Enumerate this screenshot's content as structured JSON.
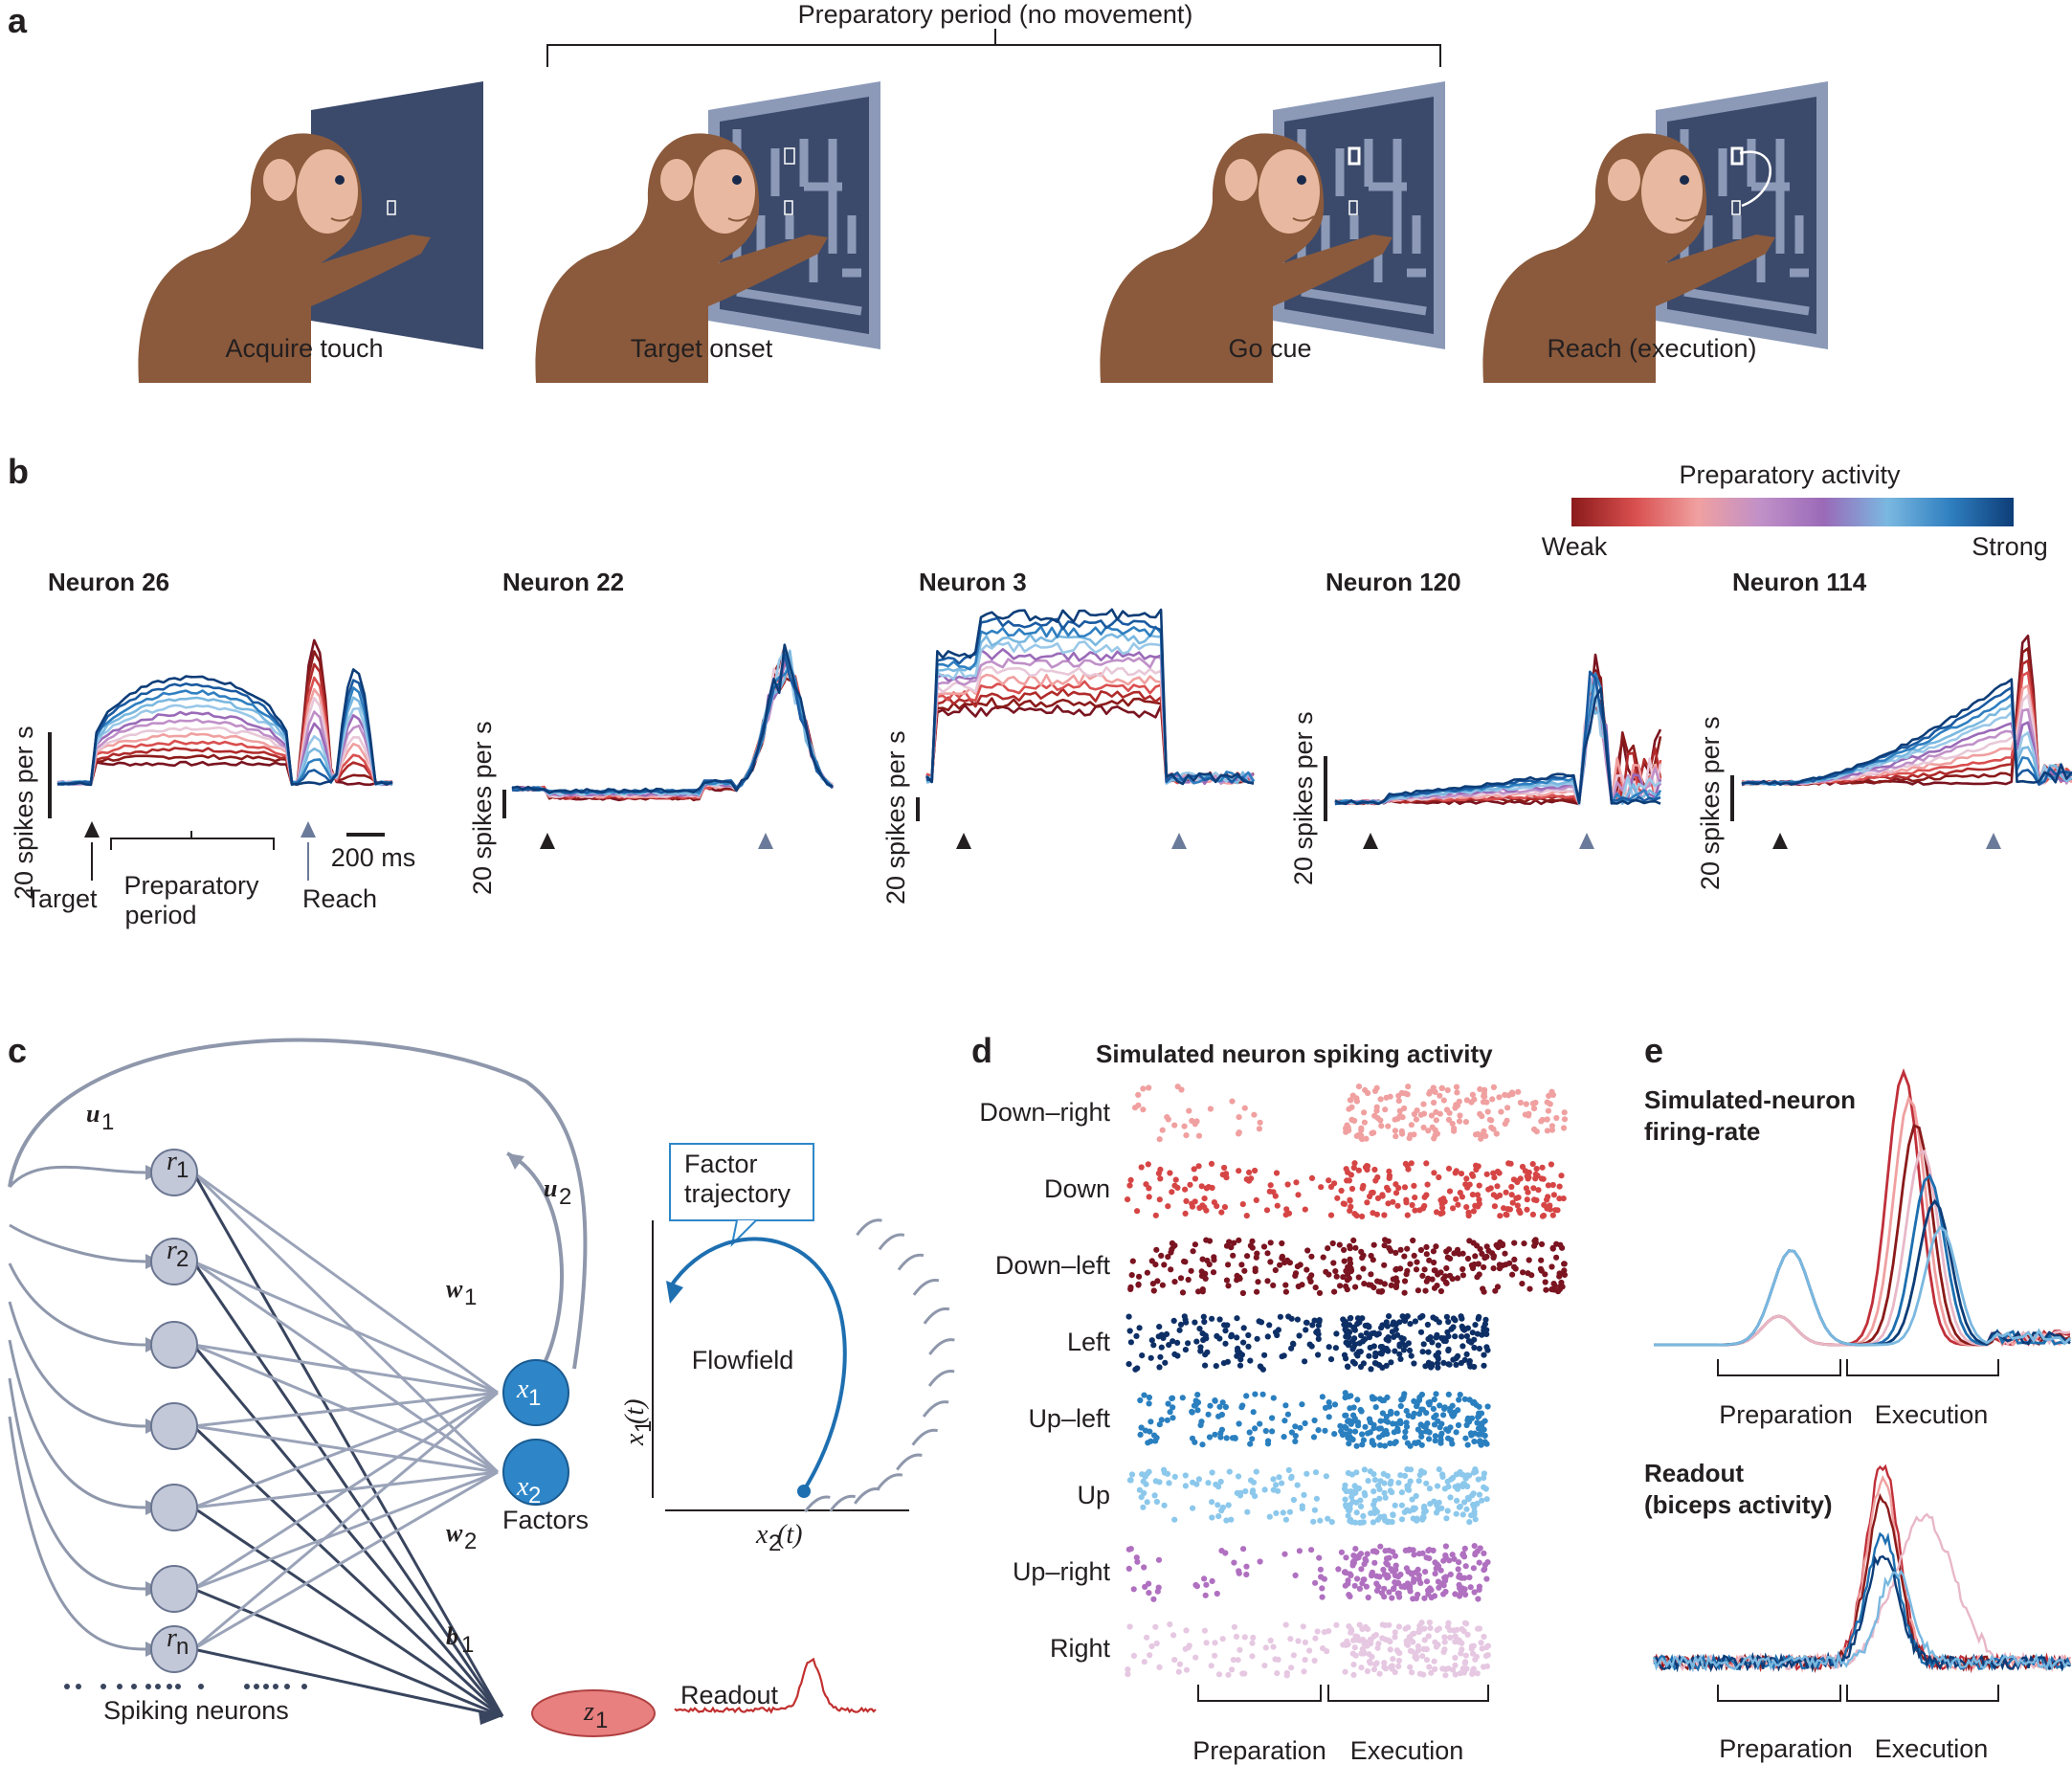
{
  "panel_a": {
    "label": "a",
    "bracket_title": "Preparatory period (no movement)",
    "captions": [
      "Acquire touch",
      "Target onset",
      "Go cue",
      "Reach (execution)"
    ]
  },
  "panel_b": {
    "label": "b",
    "colorbar_title": "Preparatory activity",
    "colorbar_low": "Weak",
    "colorbar_high": "Strong",
    "colorbar_colors": [
      "#8b1a1a",
      "#d94f4f",
      "#f0a0a0",
      "#c090c8",
      "#9a6ab8",
      "#7ab8e0",
      "#2f7fc0",
      "#0d3d78"
    ],
    "neurons": [
      "Neuron 26",
      "Neuron 22",
      "Neuron 3",
      "Neuron 120",
      "Neuron 114"
    ],
    "ylabel": "20 spikes per s",
    "time_scale": "200 ms",
    "annotations": {
      "target": "Target",
      "prep1": "Preparatory",
      "prep2": "period",
      "reach": "Reach"
    }
  },
  "panel_c": {
    "label": "c",
    "neuron_labels": [
      "r",
      "r",
      "r"
    ],
    "neuron_subs": [
      "1",
      "2",
      "n"
    ],
    "weights": {
      "u1": "u",
      "u1_sub": "1",
      "u2": "u",
      "u2_sub": "2",
      "w1": "w",
      "w1_sub": "1",
      "w2": "w",
      "w2_sub": "2",
      "b1": "b",
      "b1_sub": "1"
    },
    "factor_labels": [
      "x",
      "x"
    ],
    "factor_subs": [
      "1",
      "2"
    ],
    "factors_caption": "Factors",
    "spiking_caption": "Spiking neurons",
    "readout_node": "z",
    "readout_node_sub": "1",
    "readout_caption": "Readout",
    "callout_line1": "Factor",
    "callout_line2": "trajectory",
    "flowfield_caption": "Flowfield",
    "axis_y": "x",
    "axis_y_sub": "1",
    "axis_y_suffix": "(t)",
    "axis_x": "x",
    "axis_x_sub": "2",
    "axis_x_suffix": "(t)"
  },
  "panel_d": {
    "label": "d",
    "title": "Simulated neuron spiking activity",
    "rows": [
      {
        "name": "Down–right",
        "color": "#f0a0a0"
      },
      {
        "name": "Down",
        "color": "#d64545"
      },
      {
        "name": "Down–left",
        "color": "#7a1420"
      },
      {
        "name": "Left",
        "color": "#0d2f66"
      },
      {
        "name": "Up–left",
        "color": "#2a7fbf"
      },
      {
        "name": "Up",
        "color": "#8cc8ec"
      },
      {
        "name": "Up–right",
        "color": "#b070c0"
      },
      {
        "name": "Right",
        "color": "#e6c8e2"
      }
    ],
    "x_phases": [
      "Preparation",
      "Execution"
    ]
  },
  "panel_e": {
    "label": "e",
    "top_title1": "Simulated-neuron",
    "top_title2": "firing-rate",
    "bottom_title1": "Readout",
    "bottom_title2": "(biceps activity)",
    "x_phases_top": [
      "Preparation",
      "Execution"
    ],
    "x_phases_bottom": [
      "Preparation",
      "Execution"
    ]
  }
}
